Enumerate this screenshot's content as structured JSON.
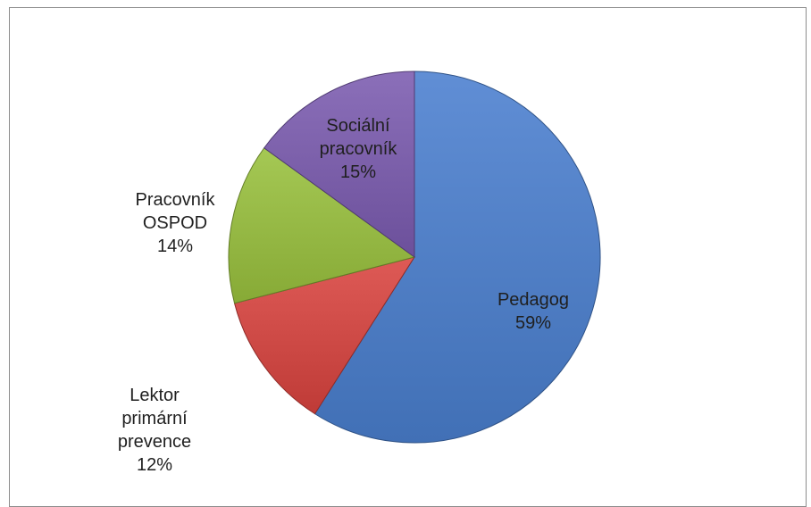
{
  "chart_data": {
    "type": "pie",
    "title": "",
    "start_angle_deg": 0,
    "direction": "clockwise",
    "slices": [
      {
        "name": "Pedagog",
        "label_lines": [
          "Pedagog"
        ],
        "value": 59,
        "value_label": "59%",
        "color": "#4a7fcf"
      },
      {
        "name": "Lektor primární prevence",
        "label_lines": [
          "Lektor",
          "primární",
          "prevence"
        ],
        "value": 12,
        "value_label": "12%",
        "color": "#d9433f"
      },
      {
        "name": "Pracovník OSPOD",
        "label_lines": [
          "Pracovník",
          "OSPOD"
        ],
        "value": 14,
        "value_label": "14%",
        "color": "#99c13d"
      },
      {
        "name": "Sociální pracovník",
        "label_lines": [
          "Sociální",
          "pracovník"
        ],
        "value": 15,
        "value_label": "15%",
        "color": "#7b5bb0"
      }
    ]
  }
}
